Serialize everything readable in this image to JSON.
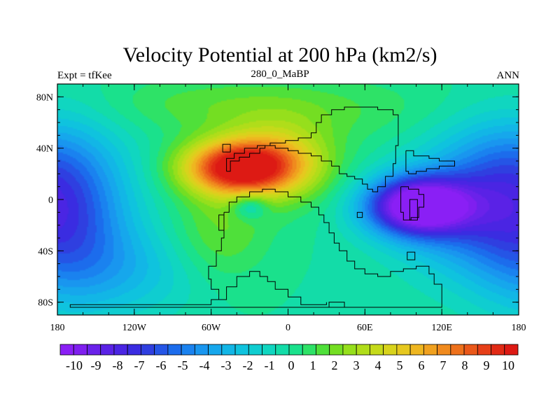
{
  "chart_data": {
    "type": "contour_map",
    "title": "Velocity Potential at 200 hPa (km2/s)",
    "left_label": "Expt = tfKee",
    "center_label": "280_0_MaBP",
    "right_label": "ANN",
    "xlim": [
      -180,
      180
    ],
    "ylim": [
      -90,
      90
    ],
    "x_ticks": [
      {
        "value": -180,
        "label": "180"
      },
      {
        "value": -120,
        "label": "120W"
      },
      {
        "value": -60,
        "label": "60W"
      },
      {
        "value": 0,
        "label": "0"
      },
      {
        "value": 60,
        "label": "60E"
      },
      {
        "value": 120,
        "label": "120E"
      },
      {
        "value": 180,
        "label": "180"
      }
    ],
    "y_ticks": [
      {
        "value": 80,
        "label": "80N"
      },
      {
        "value": 40,
        "label": "40N"
      },
      {
        "value": 0,
        "label": "0"
      },
      {
        "value": -40,
        "label": "40S"
      },
      {
        "value": -80,
        "label": "80S"
      }
    ],
    "colorbar": {
      "min": -10.5,
      "max": 10.5,
      "step": 0.5,
      "labels": [
        "-10",
        "-9",
        "-8",
        "-7",
        "-6",
        "-5",
        "-4",
        "-3",
        "-2",
        "-1",
        "0",
        "1",
        "2",
        "3",
        "4",
        "5",
        "6",
        "7",
        "8",
        "9",
        "10"
      ],
      "colors": [
        "#8a1ff5",
        "#7f1fef",
        "#6a22ea",
        "#5a22e6",
        "#4a25e3",
        "#3a2ce1",
        "#2f3fe0",
        "#2555e6",
        "#1c6cec",
        "#1a82ef",
        "#1996ef",
        "#16a7ec",
        "#12b6e6",
        "#0fc3de",
        "#0fcdd0",
        "#10d6c0",
        "#13dca8",
        "#1ae18c",
        "#2ee267",
        "#4fe03a",
        "#74de22",
        "#96df1c",
        "#b0dd1a",
        "#c5da1a",
        "#d8d31c",
        "#e6c81f",
        "#eeb620",
        "#f0a11f",
        "#f08a1e",
        "#ee711c",
        "#ea581a",
        "#e63f18",
        "#e12a15",
        "#dd1a14"
      ]
    },
    "field_centers": [
      {
        "lon": -40,
        "lat": 25,
        "value": 9.5,
        "description": "divergent maximum"
      },
      {
        "lon": 100,
        "lat": -5,
        "value": -10,
        "description": "convergent minimum"
      },
      {
        "lon": -25,
        "lat": -8,
        "value": 2.5,
        "description": "local minimum"
      }
    ]
  }
}
